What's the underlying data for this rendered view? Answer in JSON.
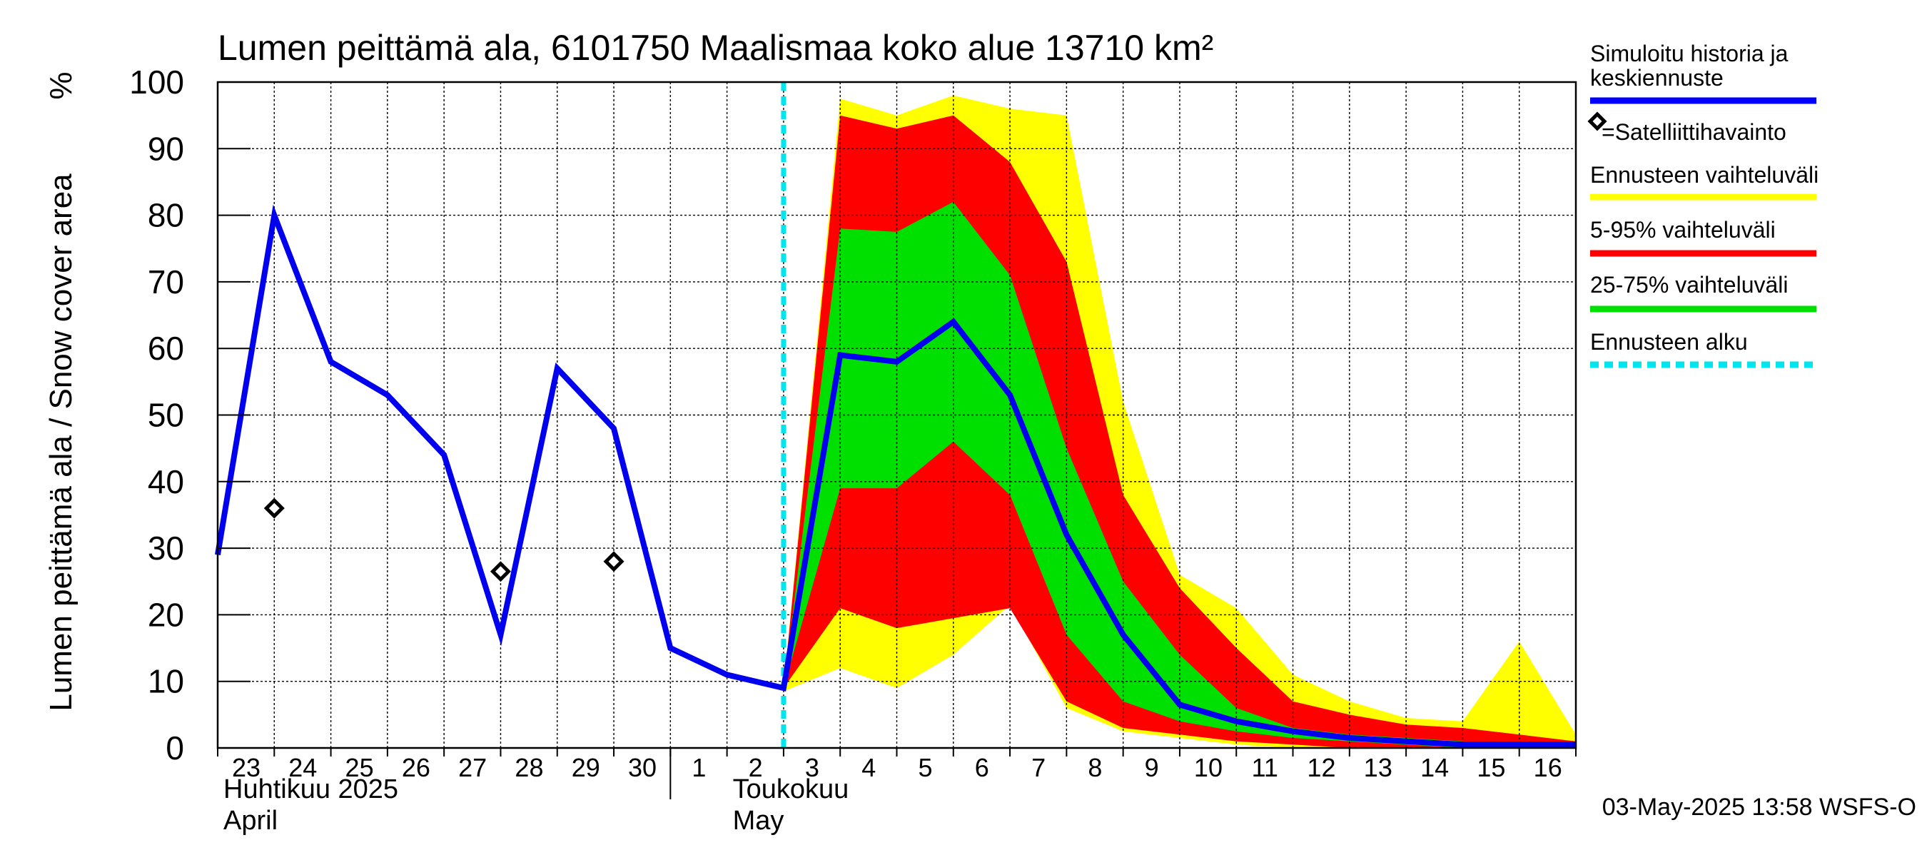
{
  "chart_data": {
    "type": "area",
    "title": "Lumen peittämä ala, 6101750 Maalismaa koko alue 13710 km²",
    "ylabel": "Lumen peittämä ala / Snow cover area",
    "yunit": "%",
    "ylim": [
      0,
      100
    ],
    "yticks": [
      0,
      10,
      20,
      30,
      40,
      50,
      60,
      70,
      80,
      90,
      100
    ],
    "xlim": [
      0,
      24
    ],
    "x_tick_labels": [
      "23",
      "24",
      "25",
      "26",
      "27",
      "28",
      "29",
      "30",
      "1",
      "2",
      "3",
      "4",
      "5",
      "6",
      "7",
      "8",
      "9",
      "10",
      "11",
      "12",
      "13",
      "14",
      "15",
      "16"
    ],
    "month_labels": [
      {
        "fi": "Huhtikuu  2025",
        "en": "April"
      },
      {
        "fi": "Toukokuu",
        "en": "May"
      }
    ],
    "forecast_start_x": 10,
    "history": {
      "name": "Simuloitu historia ja keskiennuste",
      "x": [
        0,
        1,
        2,
        3,
        4,
        5,
        6,
        7,
        8,
        9,
        10
      ],
      "y": [
        29,
        80,
        58,
        53,
        44,
        17,
        57,
        48,
        15,
        11,
        9
      ]
    },
    "forecast": {
      "x": [
        10,
        11,
        12,
        13,
        14,
        15,
        16,
        17,
        18,
        19,
        20,
        21,
        22,
        23,
        24
      ],
      "median": [
        9,
        59,
        58,
        64,
        53,
        32,
        17,
        6.5,
        4,
        2.5,
        1.5,
        1,
        0.5,
        0.5,
        0.5
      ],
      "p25": [
        9,
        39,
        39,
        46,
        38,
        17,
        7,
        4,
        2.5,
        1.5,
        1,
        0.5,
        0,
        0,
        0
      ],
      "p75": [
        9,
        78,
        77.5,
        82,
        71,
        45,
        25,
        14,
        6,
        3,
        2,
        1.5,
        1,
        0.5,
        0.5
      ],
      "p5": [
        9,
        21,
        18,
        19.5,
        21,
        7,
        3,
        2,
        1,
        0.5,
        0,
        0,
        0,
        0,
        0
      ],
      "p95": [
        9,
        95,
        93,
        95,
        88,
        73,
        38,
        24,
        15,
        7,
        5,
        3.5,
        3,
        2,
        1
      ],
      "min": [
        8.5,
        12,
        9,
        14,
        21.5,
        6,
        2.5,
        1.5,
        0.5,
        0,
        0,
        0,
        0,
        0,
        0
      ],
      "max": [
        9,
        97.5,
        95,
        98,
        96,
        95,
        52,
        26,
        21,
        11,
        7,
        4.5,
        4,
        16,
        2
      ]
    },
    "satellite": {
      "name": "=Satelliittihavainto",
      "x": [
        1,
        5,
        7
      ],
      "y": [
        36,
        26.5,
        28
      ]
    },
    "legend": [
      {
        "label": "Simuloitu historia ja keskiennuste",
        "color": "#0000ff"
      },
      {
        "label": "=Satelliittihavainto",
        "color": "#000000"
      },
      {
        "label": "Ennusteen vaihteluväli",
        "color": "#ffff00"
      },
      {
        "label": "5-95% vaihteluväli",
        "color": "#ff0000"
      },
      {
        "label": "25-75% vaihteluväli",
        "color": "#00e000"
      },
      {
        "label": "Ennusteen alku",
        "color": "#00e5ee"
      }
    ],
    "footer": "03-May-2025 13:58 WSFS-O"
  }
}
